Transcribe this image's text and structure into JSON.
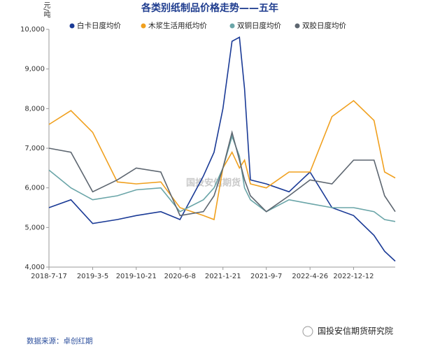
{
  "chart_data": {
    "type": "line",
    "title": "各类别纸制品价格走势——五年",
    "y_label": "元/吨",
    "source": "数据来源：卓创红期",
    "watermark": "国投安信期货",
    "brand": "国投安信期货研究院",
    "x": [
      "2018-7-17",
      "2018-11-10",
      "2019-3-5",
      "2019-7-13",
      "2019-10-21",
      "2020-2-28",
      "2020-6-8",
      "2020-10-10",
      "2020-12-5",
      "2021-1-21",
      "2021-3-10",
      "2021-4-18",
      "2021-5-15",
      "2021-6-15",
      "2021-9-7",
      "2022-1-5",
      "2022-4-26",
      "2022-8-20",
      "2022-12-12",
      "2023-3-30",
      "2023-5-25",
      "2023-7-20"
    ],
    "xlim": [
      "2018-7-17",
      "2023-7-20"
    ],
    "xticks": [
      "2018-7-17",
      "2019-3-5",
      "2019-10-21",
      "2020-6-8",
      "2021-1-21",
      "2021-9-7",
      "2022-4-26",
      "2022-12-12"
    ],
    "ylim": [
      4000,
      10000
    ],
    "yticks": [
      {
        "value": 4000,
        "label": "4,000"
      },
      {
        "value": 5000,
        "label": "5,000"
      },
      {
        "value": 6000,
        "label": "6,000"
      },
      {
        "value": 7000,
        "label": "7,000"
      },
      {
        "value": 8000,
        "label": "8,000"
      },
      {
        "value": 9000,
        "label": "9,000"
      },
      {
        "value": 10000,
        "label": "10,000"
      }
    ],
    "series": [
      {
        "name": "白卡日度均价",
        "color": "#1a3a96",
        "values": [
          5500,
          5700,
          5100,
          5200,
          5300,
          5400,
          5200,
          6300,
          6900,
          8000,
          9700,
          9800,
          8500,
          6200,
          6100,
          5900,
          6400,
          5500,
          5300,
          4800,
          4400,
          4150
        ]
      },
      {
        "name": "木浆生活用纸均价",
        "color": "#f0a01e",
        "values": [
          7600,
          7950,
          7400,
          6150,
          6100,
          6150,
          5500,
          5300,
          5200,
          6500,
          6900,
          6500,
          6700,
          6100,
          6000,
          6400,
          6400,
          7800,
          8200,
          7700,
          6400,
          6250
        ]
      },
      {
        "name": "双铜日度均价",
        "color": "#6aa5a8",
        "values": [
          6450,
          6000,
          5700,
          5800,
          5950,
          6000,
          5400,
          5700,
          6000,
          6500,
          7300,
          6800,
          6000,
          5700,
          5400,
          5700,
          5600,
          5500,
          5500,
          5400,
          5200,
          5150
        ]
      },
      {
        "name": "双胶日度均价",
        "color": "#5d6670",
        "values": [
          7000,
          6900,
          5900,
          6200,
          6500,
          6400,
          5300,
          5400,
          5800,
          6500,
          7400,
          6700,
          6200,
          5800,
          5400,
          5800,
          6200,
          6100,
          6700,
          6700,
          5800,
          5400
        ]
      }
    ]
  }
}
